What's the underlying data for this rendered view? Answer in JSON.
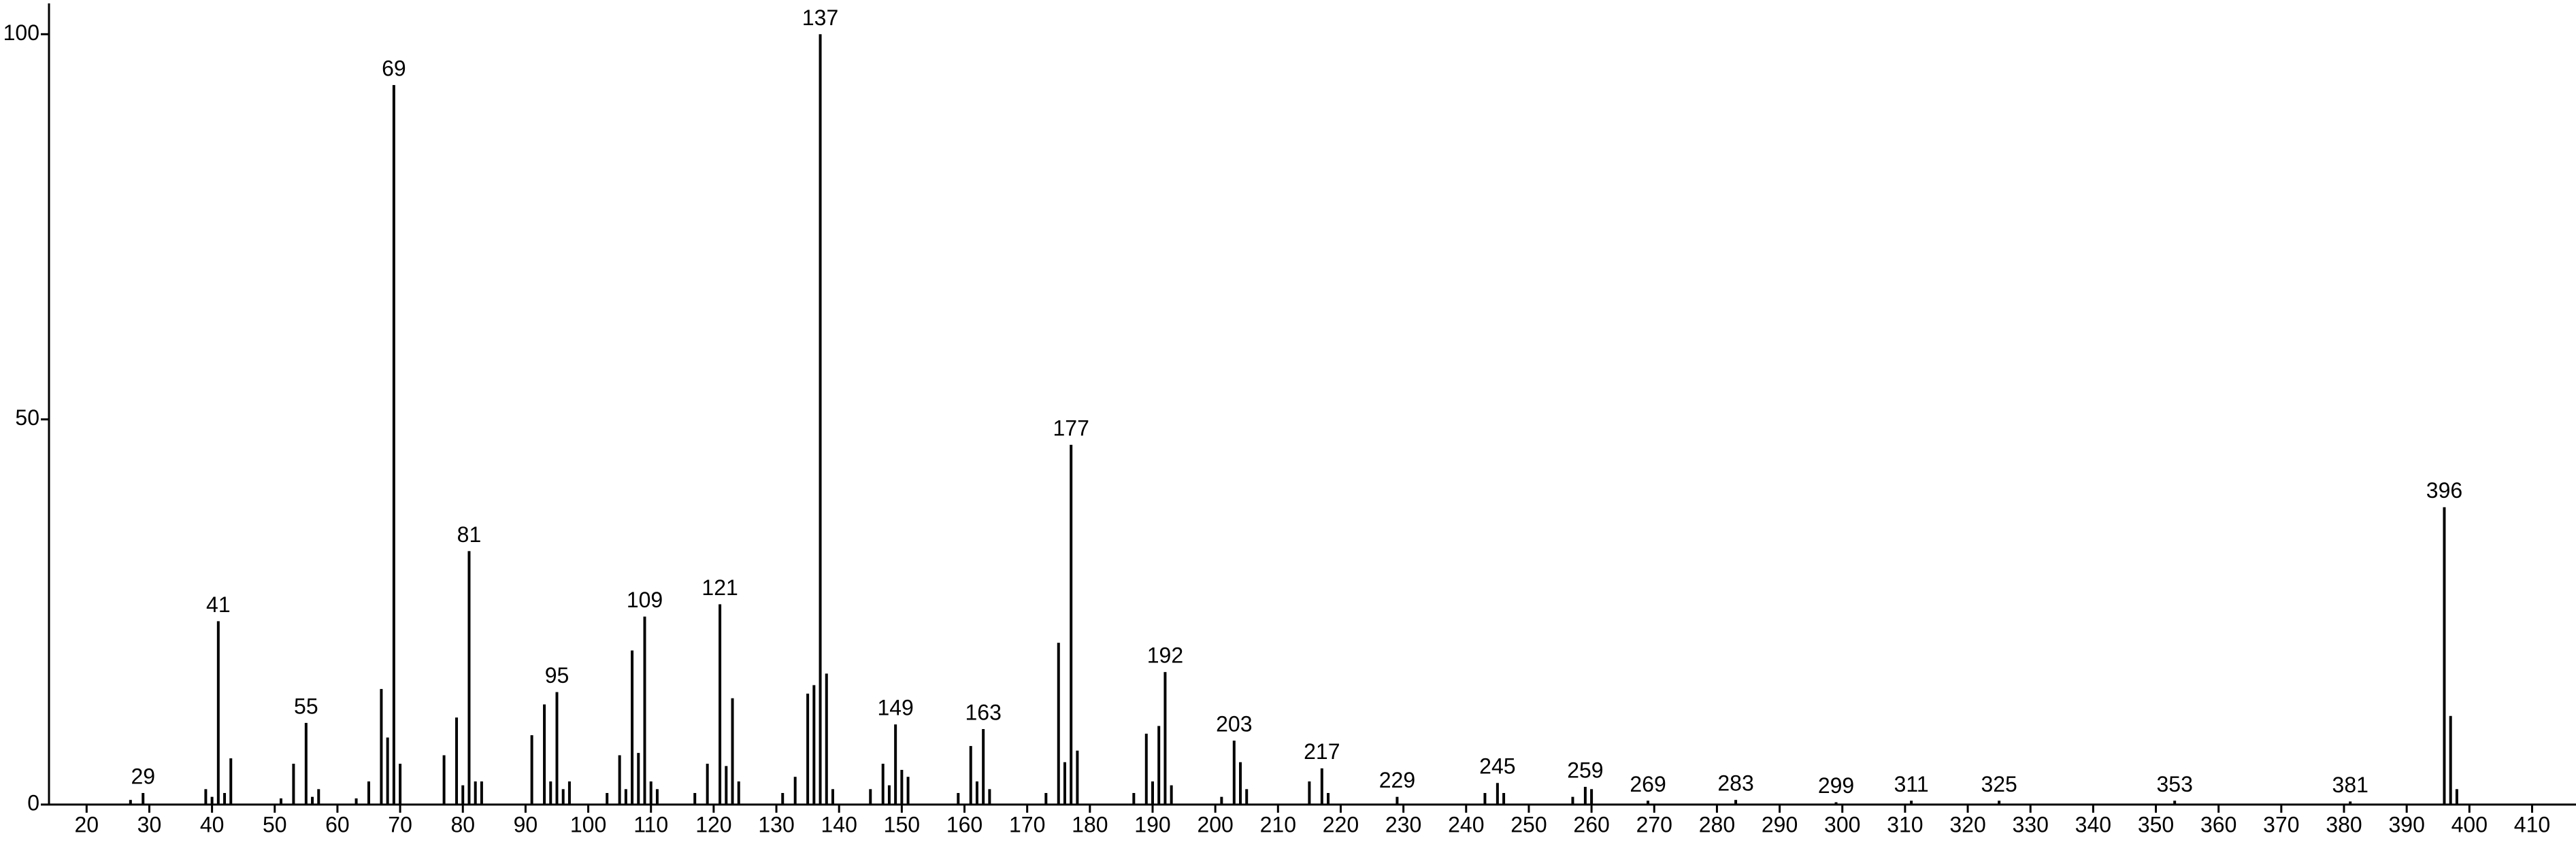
{
  "chart_data": {
    "type": "bar",
    "x": [
      27,
      29,
      39,
      40,
      41,
      42,
      43,
      51,
      53,
      55,
      56,
      57,
      63,
      65,
      67,
      68,
      69,
      70,
      77,
      79,
      80,
      81,
      82,
      83,
      91,
      93,
      94,
      95,
      96,
      97,
      103,
      105,
      106,
      107,
      108,
      109,
      110,
      111,
      117,
      119,
      121,
      122,
      123,
      124,
      131,
      133,
      135,
      136,
      137,
      138,
      139,
      145,
      147,
      148,
      149,
      150,
      151,
      159,
      161,
      162,
      163,
      164,
      173,
      175,
      176,
      177,
      178,
      187,
      189,
      190,
      191,
      192,
      193,
      201,
      203,
      204,
      205,
      215,
      217,
      218,
      229,
      243,
      245,
      246,
      257,
      259,
      260,
      269,
      283,
      299,
      311,
      325,
      353,
      381,
      396,
      397,
      398
    ],
    "values": [
      0.6,
      1.5,
      2,
      1,
      23.8,
      1.5,
      6,
      0.8,
      5.3,
      10.6,
      1,
      2,
      0.8,
      3,
      15,
      8.7,
      93.4,
      5.3,
      6.4,
      11.3,
      2.5,
      32.9,
      3,
      3,
      9,
      13,
      3,
      14.6,
      2,
      3,
      1.5,
      6.4,
      2,
      20,
      6.7,
      24.4,
      3,
      2,
      1.5,
      5.3,
      26,
      5,
      13.8,
      3,
      1.5,
      3.6,
      14.4,
      15.5,
      100,
      17,
      2,
      2,
      5.3,
      2.5,
      10.4,
      4.5,
      3.6,
      1.5,
      7.6,
      3,
      9.8,
      2,
      1.5,
      21,
      5.5,
      46.7,
      7,
      1.5,
      9.2,
      3,
      10.2,
      17.2,
      2.5,
      1,
      8.3,
      5.5,
      2,
      3,
      4.7,
      1.5,
      1,
      1.5,
      2.8,
      1.5,
      1,
      2.3,
      2,
      0.5,
      0.6,
      0.3,
      0.5,
      0.5,
      0.5,
      0.4,
      38.6,
      11.5,
      2
    ],
    "color": "#000000",
    "peak_labels": [
      29,
      41,
      55,
      69,
      81,
      95,
      109,
      121,
      137,
      149,
      163,
      177,
      192,
      203,
      217,
      229,
      245,
      259,
      269,
      283,
      299,
      311,
      325,
      353,
      381,
      396
    ],
    "xlim": [
      14,
      417
    ],
    "xticks": [
      20,
      30,
      40,
      50,
      60,
      70,
      80,
      90,
      100,
      110,
      120,
      130,
      140,
      150,
      160,
      170,
      180,
      190,
      200,
      210,
      220,
      230,
      240,
      250,
      260,
      270,
      280,
      290,
      300,
      310,
      320,
      330,
      340,
      350,
      360,
      370,
      380,
      390,
      400,
      410
    ],
    "ylim": [
      0,
      104
    ],
    "yticks": [
      0,
      50,
      100
    ]
  }
}
